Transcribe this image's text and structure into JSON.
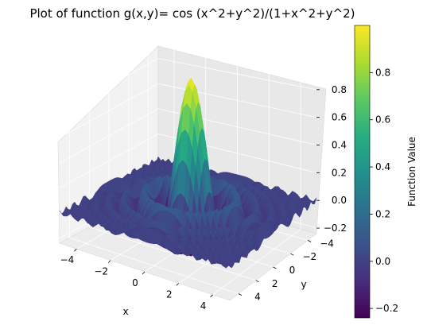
{
  "chart_data": {
    "type": "surface3d",
    "title": "Plot of function g(x,y)= cos (x^2+y^2)/(1+x^2+y^2)",
    "function": "cos(x^2+y^2)/(1+x^2+y^2)",
    "xlabel": "x",
    "ylabel": "y",
    "zlabel": "",
    "xlim": [
      -5,
      5
    ],
    "ylim": [
      -5,
      5
    ],
    "zlim": [
      -0.24,
      1.0
    ],
    "x_ticks": [
      "−4",
      "−2",
      "0",
      "2",
      "4"
    ],
    "x_tick_values": [
      -4,
      -2,
      0,
      2,
      4
    ],
    "y_ticks": [
      "−4",
      "−2",
      "0",
      "2",
      "4"
    ],
    "y_tick_values": [
      -4,
      -2,
      0,
      2,
      4
    ],
    "z_ticks": [
      "−0.2",
      "0.0",
      "0.2",
      "0.4",
      "0.6",
      "0.8"
    ],
    "z_tick_values": [
      -0.2,
      0.0,
      0.2,
      0.4,
      0.6,
      0.8
    ],
    "colormap": "viridis",
    "colorbar": {
      "label": "Function Value",
      "range": [
        -0.24,
        1.0
      ],
      "ticks": [
        "−0.2",
        "0.0",
        "0.2",
        "0.4",
        "0.6",
        "0.8"
      ],
      "tick_values": [
        -0.2,
        0.0,
        0.2,
        0.4,
        0.6,
        0.8
      ]
    },
    "grid": true,
    "legend": "none"
  }
}
